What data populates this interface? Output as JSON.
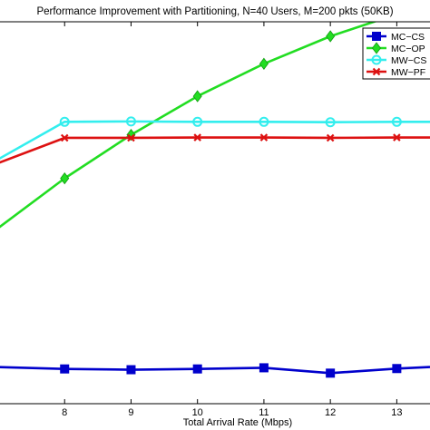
{
  "chart_data": {
    "type": "line",
    "title": "Performance Improvement with Partitioning, N=40 Users, M=200 pkts (50KB)",
    "xlabel": "Total Arrival Rate (Mbps)",
    "ylabel": "",
    "xlim": [
      7.0,
      13.5
    ],
    "ylim": [
      0,
      100
    ],
    "x_ticks": [
      8,
      9,
      10,
      11,
      12,
      13
    ],
    "grid": false,
    "legend_position": "top-right",
    "series": [
      {
        "name": "MC−CS",
        "color": "#0000cc",
        "marker": "square",
        "x": [
          7,
          8,
          9,
          10,
          11,
          12,
          13,
          13.5
        ],
        "y": [
          9.6,
          9.1,
          8.9,
          9.1,
          9.4,
          8.0,
          9.2,
          9.6
        ]
      },
      {
        "name": "MC−OP",
        "color": "#22dd22",
        "marker": "diamond",
        "x": [
          7,
          8,
          9,
          10,
          11,
          12,
          13,
          13.5
        ],
        "y": [
          46.0,
          59.0,
          70.4,
          80.5,
          89.0,
          96.2,
          102.0,
          104.0
        ]
      },
      {
        "name": "MW−CS",
        "color": "#33eeee",
        "marker": "circle",
        "x": [
          7,
          8,
          9,
          10,
          11,
          12,
          13,
          13.5
        ],
        "y": [
          64.0,
          73.8,
          73.9,
          73.8,
          73.8,
          73.7,
          73.8,
          73.8
        ]
      },
      {
        "name": "MW−PF",
        "color": "#dd1111",
        "marker": "x",
        "x": [
          7,
          8,
          9,
          10,
          11,
          12,
          13,
          13.5
        ],
        "y": [
          63.0,
          69.6,
          69.6,
          69.7,
          69.7,
          69.6,
          69.7,
          69.7
        ]
      }
    ]
  }
}
